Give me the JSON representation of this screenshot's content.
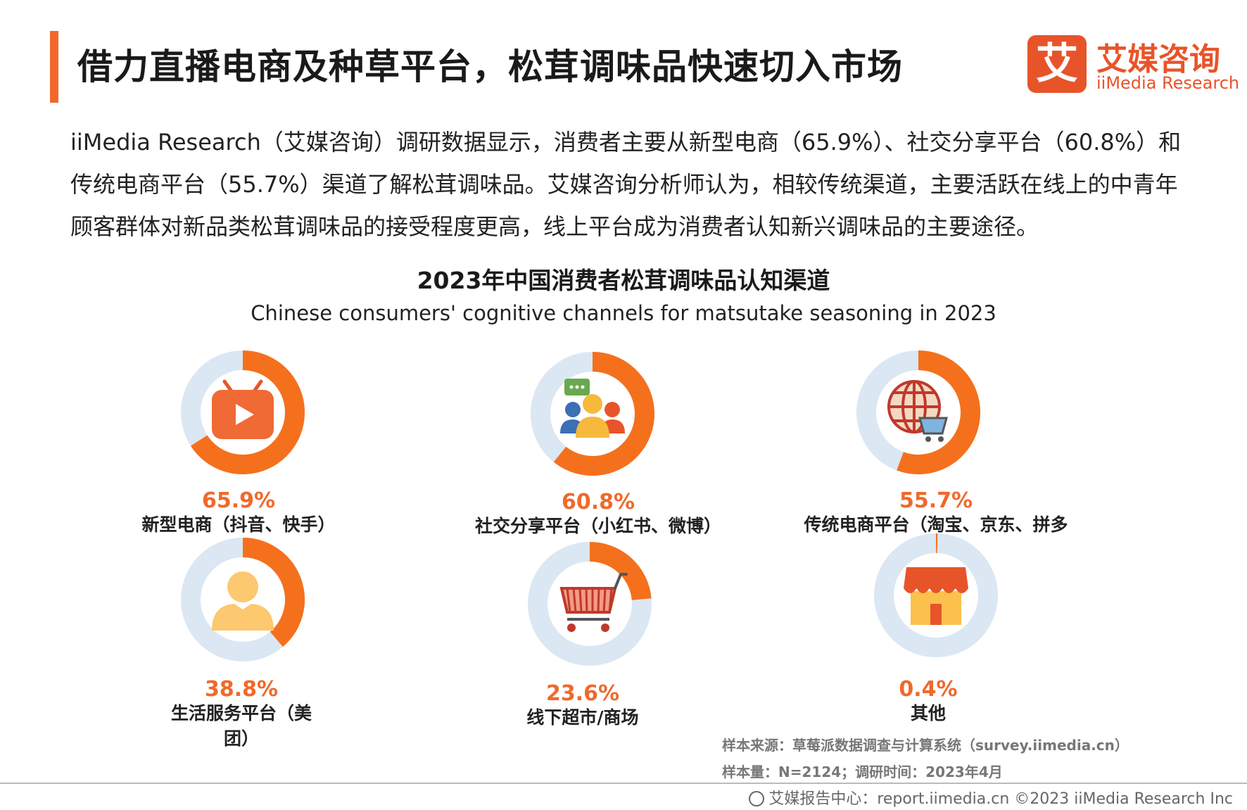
{
  "header": {
    "title": "借力直播电商及种草平台，松茸调味品快速切入市场",
    "logo_cn": "艾媒咨询",
    "logo_en": "iiMedia Research",
    "logo_mark": "艾"
  },
  "intro": "iiMedia Research（艾媒咨询）调研数据显示，消费者主要从新型电商（65.9%）、社交分享平台（60.8%）和传统电商平台（55.7%）渠道了解松茸调味品。艾媒咨询分析师认为，相较传统渠道，主要活跃在线上的中青年顾客群体对新品类松茸调味品的接受程度更高，线上平台成为消费者认知新兴调味品的主要途径。",
  "chart_data": {
    "type": "pie",
    "title": "2023年中国消费者松茸调味品认知渠道",
    "subtitle": "Chinese consumers' cognitive channels for matsutake seasoning in 2023",
    "categories": [
      "新型电商（抖音、快手）",
      "社交分享平台（小红书、微博）",
      "传统电商平台（淘宝、京东、拼多",
      "生活服务平台（美团）",
      "线下超市/商场",
      "其他"
    ],
    "values": [
      65.9,
      60.8,
      55.7,
      38.8,
      23.6,
      0.4
    ],
    "labels": [
      "65.9%",
      "60.8%",
      "55.7%",
      "38.8%",
      "23.6%",
      "0.4%"
    ],
    "icons": [
      "tv-play-icon",
      "people-chat-icon",
      "globe-cart-icon",
      "person-icon",
      "shopping-cart-icon",
      "store-icon"
    ],
    "colors": {
      "fill": "#f5701c",
      "track": "#dbe7f3"
    }
  },
  "source": {
    "line1": "样本来源：草莓派数据调查与计算系统（survey.iimedia.cn）",
    "line2": "样本量：N=2124；调研时间：2023年4月"
  },
  "footer": "艾媒报告中心：report.iimedia.cn  ©2023  iiMedia Research  Inc"
}
